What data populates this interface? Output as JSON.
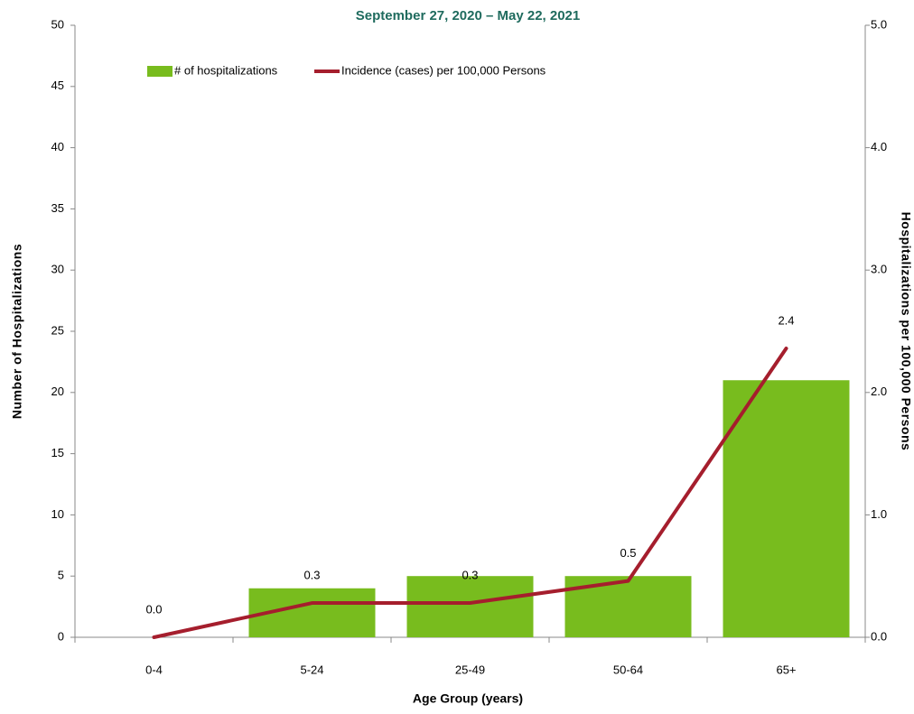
{
  "chart_data": {
    "type": "combo",
    "title": "September 27, 2020 – May 22, 2021",
    "x_label": "Age Group (years)",
    "y_label": "Number of Hospitalizations",
    "y2_label": "Hospitalizations per 100,000 Persons",
    "categories": [
      "0-4",
      "5-24",
      "25-49",
      "50-64",
      "65+"
    ],
    "series": [
      {
        "name": "# of hospitalizations",
        "type": "bar",
        "color": "#78bc1e",
        "values": [
          0,
          4,
          5,
          5,
          21
        ]
      },
      {
        "name": "Incidence (cases) per 100,000 Persons",
        "type": "line",
        "axis": "y2",
        "color": "#a51e2d",
        "values": [
          0,
          0.28,
          0.28,
          0.46,
          2.36
        ],
        "value_labels": [
          "0.0",
          "0.3",
          "0.3",
          "0.5",
          "2.4"
        ]
      }
    ],
    "ylim": [
      0,
      50
    ],
    "yticks": [
      0,
      5,
      10,
      15,
      20,
      25,
      30,
      35,
      40,
      45,
      50
    ],
    "y2lim": [
      0,
      5
    ],
    "y2ticks": [
      {
        "value": 0,
        "label": "0.0"
      },
      {
        "value": 1,
        "label": "1.0"
      },
      {
        "value": 2,
        "label": "2.0"
      },
      {
        "value": 3,
        "label": "3.0"
      },
      {
        "value": 4,
        "label": "4.0"
      },
      {
        "value": 5,
        "label": "5.0"
      }
    ],
    "legend": "top"
  }
}
